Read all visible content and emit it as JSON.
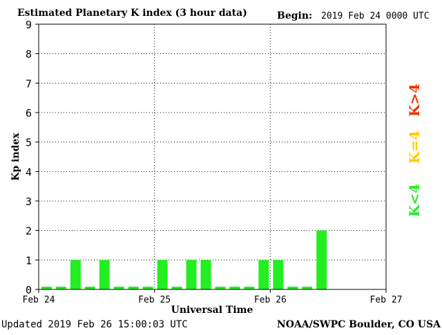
{
  "chart_data": {
    "type": "bar",
    "title": "Estimated Planetary K index (3 hour data)",
    "begin_label": "Begin:",
    "begin_value": "2019 Feb 24 0000 UTC",
    "xlabel": "Universal Time",
    "ylabel": "Kp index",
    "ylim": [
      0,
      9
    ],
    "yticks": [
      "0",
      "1",
      "2",
      "3",
      "4",
      "5",
      "6",
      "7",
      "8",
      "9"
    ],
    "xticks": [
      "Feb 24",
      "Feb 25",
      "Feb 26",
      "Feb 27"
    ],
    "grid": "dotted",
    "values": [
      0,
      0,
      1,
      0,
      1,
      0,
      0,
      0,
      1,
      0,
      1,
      1,
      0,
      0,
      0,
      1,
      1,
      0,
      0,
      2
    ],
    "legend": [
      {
        "label": "K<4",
        "color": "#22ee22"
      },
      {
        "label": "K=4",
        "color": "#ffcc00"
      },
      {
        "label": "K>4",
        "color": "#ee3300"
      }
    ],
    "bar_color": "#22ee22"
  },
  "footer": {
    "updated": "Updated 2019 Feb 26 15:00:03 UTC",
    "source": "NOAA/SWPC Boulder, CO USA"
  }
}
